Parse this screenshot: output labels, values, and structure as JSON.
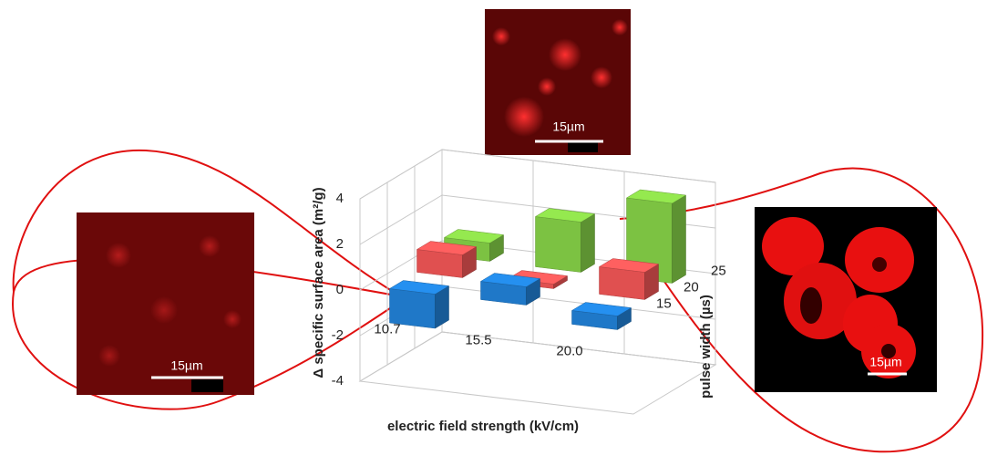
{
  "chart_data": {
    "type": "bar3d",
    "z_title": "Δ specific surface area (m²/g)",
    "x_title": "electric field strength (kV/cm)",
    "depth_title": "pulse width (µs)",
    "categories": [
      "10.7",
      "15.5",
      "20.0"
    ],
    "depth_categories": [
      "15",
      "20",
      "25"
    ],
    "series": [
      {
        "color": "#1f78c8",
        "values": [
          -1.5,
          0.8,
          -0.6
        ]
      },
      {
        "color": "#e05050",
        "values": [
          1.0,
          0.2,
          1.2
        ]
      },
      {
        "color": "#7cc242",
        "values": [
          0.8,
          2.2,
          3.5
        ]
      }
    ],
    "zlim": [
      -4,
      4
    ],
    "zticks": [
      -4,
      -2,
      0,
      2,
      4
    ],
    "grid": true
  },
  "images": [
    {
      "scale_label": "15µm"
    },
    {
      "scale_label": "15µm"
    },
    {
      "scale_label": "15µm"
    }
  ]
}
